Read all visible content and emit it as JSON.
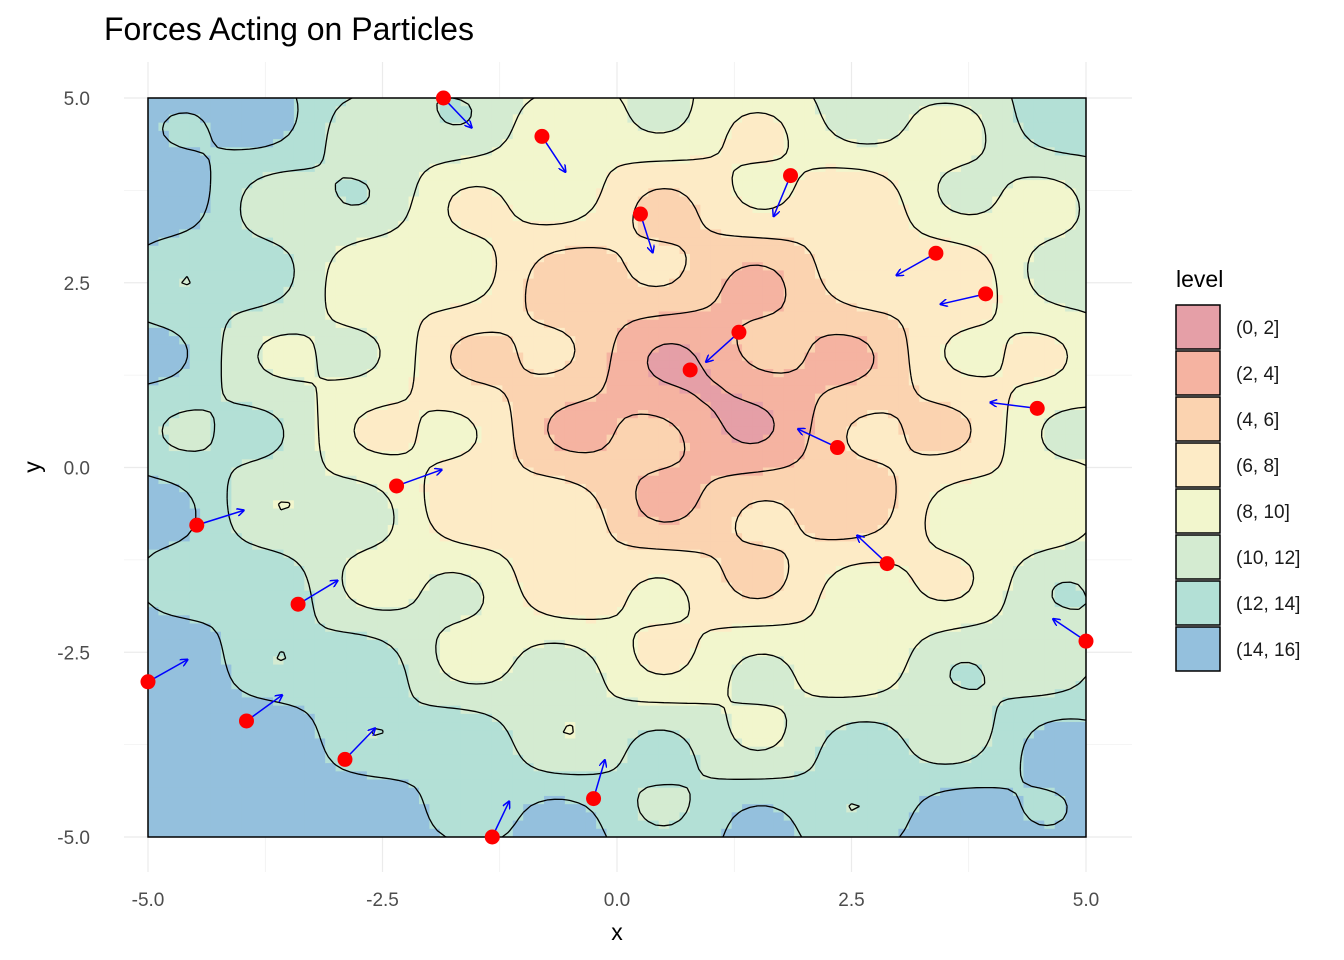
{
  "chart_data": {
    "type": "contour",
    "title": "Forces Acting on Particles",
    "xlabel": "x",
    "ylabel": "y",
    "xlim": [
      -5,
      5
    ],
    "ylim": [
      -5,
      5
    ],
    "x_ticks": [
      "-5.0",
      "-2.5",
      "0.0",
      "2.5",
      "5.0"
    ],
    "y_ticks": [
      "5.0",
      "2.5",
      "0.0",
      "-2.5",
      "-5.0"
    ],
    "grid": true,
    "potential_center": [
      1,
      1
    ],
    "legend": {
      "title": "level",
      "position": "right",
      "entries": [
        {
          "label": "(0, 2]",
          "color": "#e59fa7"
        },
        {
          "label": "(2, 4]",
          "color": "#f5b3a1"
        },
        {
          "label": "(4, 6]",
          "color": "#fbd3b0"
        },
        {
          "label": "(6, 8]",
          "color": "#fdebc6"
        },
        {
          "label": "(8, 10]",
          "color": "#f2f6cd"
        },
        {
          "label": "(10, 12]",
          "color": "#d4ebd1"
        },
        {
          "label": "(12, 14]",
          "color": "#b3e0d6"
        },
        {
          "label": "(14, 16]",
          "color": "#94c0dd"
        }
      ]
    },
    "particle_color": "#ff0000",
    "arrow_color": "#0000ff",
    "particles": [
      {
        "x": -1.85,
        "y": 5.0,
        "fx": 0.3,
        "fy": -0.4
      },
      {
        "x": -0.8,
        "y": 4.48,
        "fx": 0.25,
        "fy": -0.48
      },
      {
        "x": 0.25,
        "y": 3.43,
        "fx": 0.13,
        "fy": -0.52
      },
      {
        "x": 1.85,
        "y": 3.95,
        "fx": -0.18,
        "fy": -0.55
      },
      {
        "x": 3.4,
        "y": 2.9,
        "fx": -0.42,
        "fy": -0.3
      },
      {
        "x": 3.93,
        "y": 2.35,
        "fx": -0.48,
        "fy": -0.14
      },
      {
        "x": 1.3,
        "y": 1.83,
        "fx": -0.35,
        "fy": -0.4
      },
      {
        "x": 0.78,
        "y": 1.32,
        "fx": 0.0,
        "fy": 0.0
      },
      {
        "x": 4.48,
        "y": 0.8,
        "fx": -0.5,
        "fy": 0.08
      },
      {
        "x": 2.35,
        "y": 0.27,
        "fx": -0.42,
        "fy": 0.25
      },
      {
        "x": -2.35,
        "y": -0.25,
        "fx": 0.48,
        "fy": 0.22
      },
      {
        "x": -4.48,
        "y": -0.78,
        "fx": 0.5,
        "fy": 0.2
      },
      {
        "x": 2.88,
        "y": -1.3,
        "fx": -0.32,
        "fy": 0.38
      },
      {
        "x": -3.4,
        "y": -1.85,
        "fx": 0.42,
        "fy": 0.32
      },
      {
        "x": 5.0,
        "y": -2.35,
        "fx": -0.35,
        "fy": 0.3
      },
      {
        "x": -5.0,
        "y": -2.9,
        "fx": 0.42,
        "fy": 0.3
      },
      {
        "x": -3.95,
        "y": -3.43,
        "fx": 0.38,
        "fy": 0.35
      },
      {
        "x": -2.9,
        "y": -3.95,
        "fx": 0.32,
        "fy": 0.42
      },
      {
        "x": -0.25,
        "y": -4.48,
        "fx": 0.12,
        "fy": 0.52
      },
      {
        "x": -1.33,
        "y": -5.0,
        "fx": 0.18,
        "fy": 0.48
      }
    ]
  }
}
